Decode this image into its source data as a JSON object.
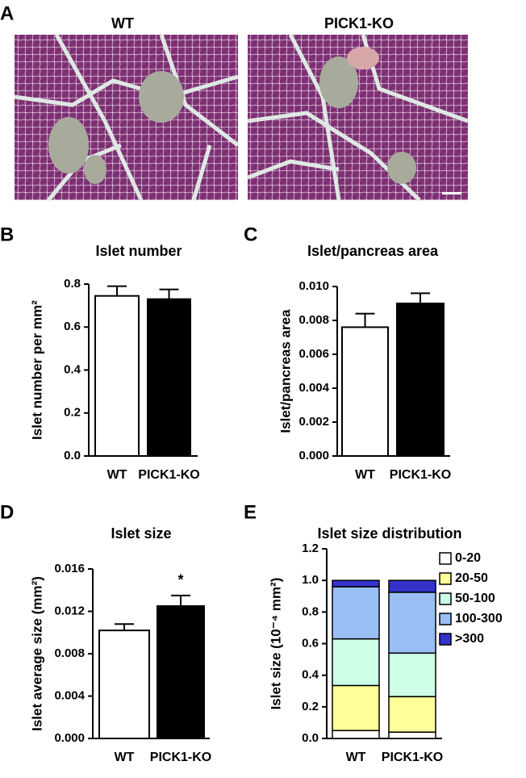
{
  "panel_labels": [
    "A",
    "B",
    "C",
    "D",
    "E"
  ],
  "images": [
    {
      "title": "WT"
    },
    {
      "title": "PICK1-KO"
    }
  ],
  "chart_data": [
    {
      "type": "bar",
      "title": "Islet number",
      "ylabel": "Islet number per mm²",
      "categories": [
        "WT",
        "PICK1-KO"
      ],
      "values": [
        0.745,
        0.73
      ],
      "errors": [
        0.045,
        0.045
      ],
      "colors": [
        "#ffffff",
        "#000000"
      ],
      "ylim": [
        0,
        0.8
      ],
      "yticks": [
        {
          "value": 0,
          "label": "0.0"
        },
        0.2,
        0.4,
        0.6,
        0.8
      ]
    },
    {
      "type": "bar",
      "title": "Islet/pancreas area",
      "ylabel": "Islet/pancreas area",
      "categories": [
        "WT",
        "PICK1-KO"
      ],
      "values": [
        0.0076,
        0.009
      ],
      "errors": [
        0.0008,
        0.0006
      ],
      "colors": [
        "#ffffff",
        "#000000"
      ],
      "ylim": [
        0,
        0.01
      ],
      "yticks": [
        {
          "value": 0,
          "label": "0.000"
        },
        0.002,
        0.004,
        0.006,
        0.008,
        {
          "value": 0.01,
          "label": "0.010"
        }
      ]
    },
    {
      "type": "bar",
      "title": "Islet size",
      "ylabel": "Islet average size (mm²)",
      "categories": [
        "WT",
        "PICK1-KO"
      ],
      "values": [
        0.0102,
        0.0125
      ],
      "errors": [
        0.0006,
        0.001
      ],
      "colors": [
        "#ffffff",
        "#000000"
      ],
      "annotation": "*",
      "ylim": [
        0,
        0.016
      ],
      "yticks": [
        {
          "value": 0,
          "label": "0.000"
        },
        0.004,
        0.008,
        0.012,
        0.016
      ]
    },
    {
      "type": "stacked_bar",
      "title": "Islet size distribution",
      "ylabel": "Islet size (10⁻⁴ mm²)",
      "categories": [
        "WT",
        "PICK1-KO"
      ],
      "series": [
        {
          "name": "0-20",
          "color": "#ffffff",
          "values": [
            0.05,
            0.04
          ]
        },
        {
          "name": "20-50",
          "color": "#ffff99",
          "values": [
            0.285,
            0.225
          ]
        },
        {
          "name": "50-100",
          "color": "#ccffe6",
          "values": [
            0.295,
            0.275
          ]
        },
        {
          "name": "100-300",
          "color": "#99bff5",
          "values": [
            0.33,
            0.385
          ]
        },
        {
          "name": ">300",
          "color": "#3333cc",
          "values": [
            0.04,
            0.075
          ]
        }
      ],
      "ylim": [
        0,
        1.2
      ],
      "yticks": [
        {
          "value": 0,
          "label": "0.0"
        },
        0.2,
        0.4,
        0.6,
        0.8,
        {
          "value": 1,
          "label": "1.0"
        },
        1.2
      ]
    }
  ]
}
